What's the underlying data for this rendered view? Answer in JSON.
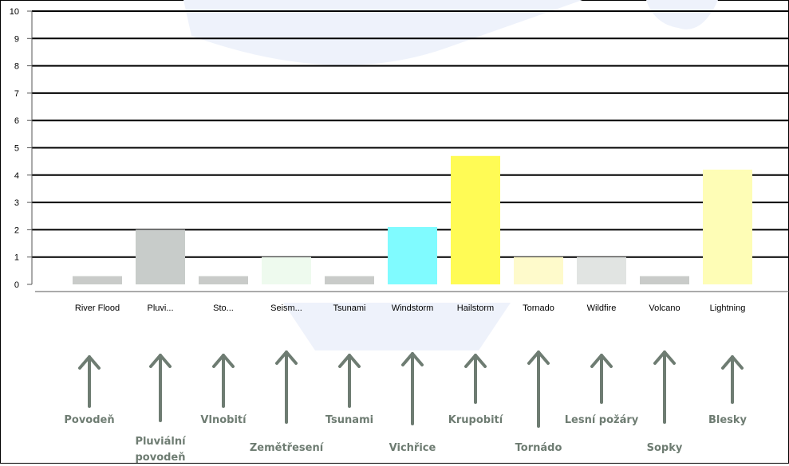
{
  "chart_data": {
    "type": "bar",
    "categories": [
      "River Flood",
      "Pluvi...",
      "Sto...",
      "Seism...",
      "Tsunami",
      "Windstorm",
      "Hailstorm",
      "Tornado",
      "Wildfire",
      "Volcano",
      "Lightning"
    ],
    "values": [
      0.3,
      2.0,
      0.3,
      1.0,
      0.3,
      2.1,
      4.7,
      1.0,
      1.0,
      0.3,
      4.2
    ],
    "bar_colors": [
      "#c9cbc9",
      "#c8ccca",
      "#c9cbc9",
      "#eefaee",
      "#c9cbc9",
      "#80fbff",
      "#fffb55",
      "#fefacb",
      "#e1e4e2",
      "#c9cbc9",
      "#fefdb6"
    ],
    "ylim": [
      0,
      10
    ],
    "yticks": [
      0,
      1,
      2,
      3,
      4,
      5,
      6,
      7,
      8,
      9,
      10
    ],
    "grid": true,
    "title": "",
    "xlabel": "",
    "ylabel": ""
  },
  "annotations": [
    {
      "label": "Povodeň"
    },
    {
      "label": "Pluviální\npovodeň"
    },
    {
      "label": "Vlnobití"
    },
    {
      "label": "Zemětřesení"
    },
    {
      "label": "Tsunami"
    },
    {
      "label": "Vichřice"
    },
    {
      "label": "Krupobití"
    },
    {
      "label": "Tornádo"
    },
    {
      "label": "Lesní požáry"
    },
    {
      "label": "Sopky"
    },
    {
      "label": "Blesky"
    }
  ],
  "colors": {
    "annotation": "#6e7c72",
    "watermark": "#eef2fb",
    "grid": "#000000"
  }
}
